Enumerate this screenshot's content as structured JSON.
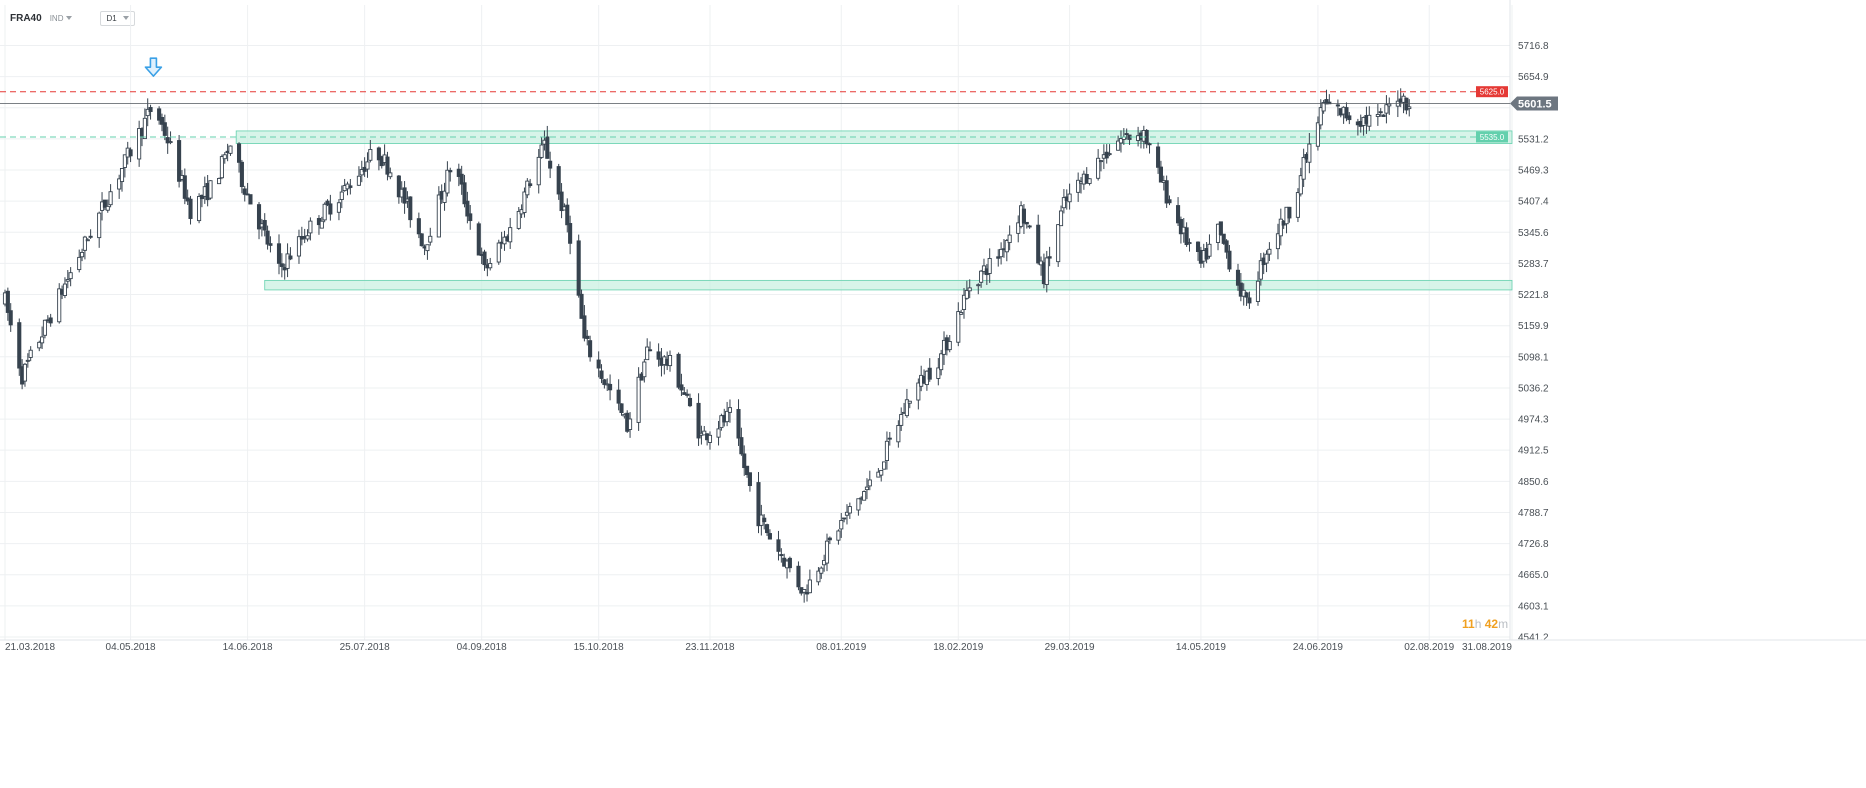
{
  "header": {
    "symbol": "FRA40",
    "indicator_label": "IND",
    "timeframe": "D1"
  },
  "countdown": {
    "hours": "11",
    "hours_unit": "h",
    "minutes": "42",
    "minutes_unit": "m"
  },
  "colors": {
    "bull_fill": "#ffffff",
    "bear_fill": "#36424e",
    "wick": "#36424e",
    "resistance": "#e53935",
    "support": "#63d0ad",
    "zone_fill": "#c6f0e0",
    "price_tag": "#6d7680",
    "arrow": "#3aa0e6",
    "grid": "#eef0f2"
  },
  "chart_data": {
    "type": "candlestick",
    "title": "",
    "instrument": "FRA40",
    "timeframe": "D1",
    "x_axis": {
      "type": "date",
      "range": [
        "2018-03-21",
        "2019-08-31"
      ],
      "tick_labels": [
        "21.03.2018",
        "04.05.2018",
        "14.06.2018",
        "25.07.2018",
        "04.09.2018",
        "15.10.2018",
        "23.11.2018",
        "08.01.2019",
        "18.02.2019",
        "29.03.2019",
        "14.05.2019",
        "24.06.2019",
        "02.08.2019",
        "31.08.2019"
      ]
    },
    "y_axis": {
      "range": [
        4541.2,
        5778.7
      ],
      "tick_values": [
        5716.8,
        5654.9,
        5593.0,
        5531.2,
        5469.3,
        5407.4,
        5345.6,
        5283.7,
        5221.8,
        5159.9,
        5098.1,
        5036.2,
        4974.3,
        4912.5,
        4850.6,
        4788.7,
        4726.8,
        4665.0,
        4603.1,
        4541.2
      ],
      "tick_labels": [
        "5716.8",
        "5654.9",
        "",
        "5531.2",
        "5469.3",
        "5407.4",
        "5345.6",
        "5283.7",
        "5221.8",
        "5159.9",
        "5098.1",
        "5036.2",
        "4974.3",
        "4912.5",
        "4850.6",
        "4788.7",
        "4726.8",
        "4665.0",
        "4603.1",
        "4541.2"
      ]
    },
    "current_price": {
      "value": 5601.5,
      "label": "5601.5"
    },
    "levels": [
      {
        "value": 5625.0,
        "label": "5625.0",
        "kind": "resistance",
        "style": "dashed"
      },
      {
        "value": 5535.0,
        "label": "5535.0",
        "kind": "support",
        "style": "dashed"
      }
    ],
    "zones": [
      {
        "from_date": "2018-06-10",
        "to_date": "2019-08-31",
        "low": 5522,
        "high": 5547
      },
      {
        "from_date": "2018-06-20",
        "to_date": "2019-08-31",
        "low": 5231,
        "high": 5250
      }
    ],
    "annotations": [
      {
        "type": "down-arrow",
        "date": "2018-05-12",
        "price": 5640
      }
    ],
    "anchors": [
      {
        "date": "2018-03-21",
        "close": 5210
      },
      {
        "date": "2018-03-27",
        "close": 5060
      },
      {
        "date": "2018-04-10",
        "close": 5230
      },
      {
        "date": "2018-05-12",
        "close": 5600
      },
      {
        "date": "2018-05-17",
        "close": 5530
      },
      {
        "date": "2018-05-25",
        "close": 5390
      },
      {
        "date": "2018-06-02",
        "close": 5440
      },
      {
        "date": "2018-06-08",
        "close": 5520
      },
      {
        "date": "2018-06-12",
        "close": 5450
      },
      {
        "date": "2018-06-25",
        "close": 5270
      },
      {
        "date": "2018-07-05",
        "close": 5350
      },
      {
        "date": "2018-07-18",
        "close": 5430
      },
      {
        "date": "2018-07-29",
        "close": 5510
      },
      {
        "date": "2018-08-03",
        "close": 5470
      },
      {
        "date": "2018-08-15",
        "close": 5320
      },
      {
        "date": "2018-08-25",
        "close": 5490
      },
      {
        "date": "2018-09-05",
        "close": 5270
      },
      {
        "date": "2018-09-14",
        "close": 5350
      },
      {
        "date": "2018-09-26",
        "close": 5520
      },
      {
        "date": "2018-10-05",
        "close": 5340
      },
      {
        "date": "2018-10-10",
        "close": 5130
      },
      {
        "date": "2018-10-25",
        "close": 4960
      },
      {
        "date": "2018-11-01",
        "close": 5110
      },
      {
        "date": "2018-11-10",
        "close": 5080
      },
      {
        "date": "2018-11-20",
        "close": 4940
      },
      {
        "date": "2018-11-30",
        "close": 4980
      },
      {
        "date": "2018-12-10",
        "close": 4780
      },
      {
        "date": "2018-12-26",
        "close": 4630
      },
      {
        "date": "2019-01-07",
        "close": 4760
      },
      {
        "date": "2019-01-20",
        "close": 4860
      },
      {
        "date": "2019-02-01",
        "close": 5020
      },
      {
        "date": "2019-02-12",
        "close": 5100
      },
      {
        "date": "2019-02-22",
        "close": 5240
      },
      {
        "date": "2019-03-04",
        "close": 5300
      },
      {
        "date": "2019-03-12",
        "close": 5390
      },
      {
        "date": "2019-03-20",
        "close": 5260
      },
      {
        "date": "2019-03-27",
        "close": 5400
      },
      {
        "date": "2019-04-04",
        "close": 5460
      },
      {
        "date": "2019-04-15",
        "close": 5530
      },
      {
        "date": "2019-04-24",
        "close": 5545
      },
      {
        "date": "2019-04-29",
        "close": 5460
      },
      {
        "date": "2019-05-08",
        "close": 5340
      },
      {
        "date": "2019-05-14",
        "close": 5280
      },
      {
        "date": "2019-05-20",
        "close": 5350
      },
      {
        "date": "2019-05-30",
        "close": 5200
      },
      {
        "date": "2019-06-06",
        "close": 5310
      },
      {
        "date": "2019-06-14",
        "close": 5390
      },
      {
        "date": "2019-06-22",
        "close": 5530
      },
      {
        "date": "2019-06-26",
        "close": 5600
      },
      {
        "date": "2019-07-08",
        "close": 5570
      },
      {
        "date": "2019-07-16",
        "close": 5570
      },
      {
        "date": "2019-07-22",
        "close": 5620
      },
      {
        "date": "2019-07-26",
        "close": 5601.5
      }
    ]
  }
}
